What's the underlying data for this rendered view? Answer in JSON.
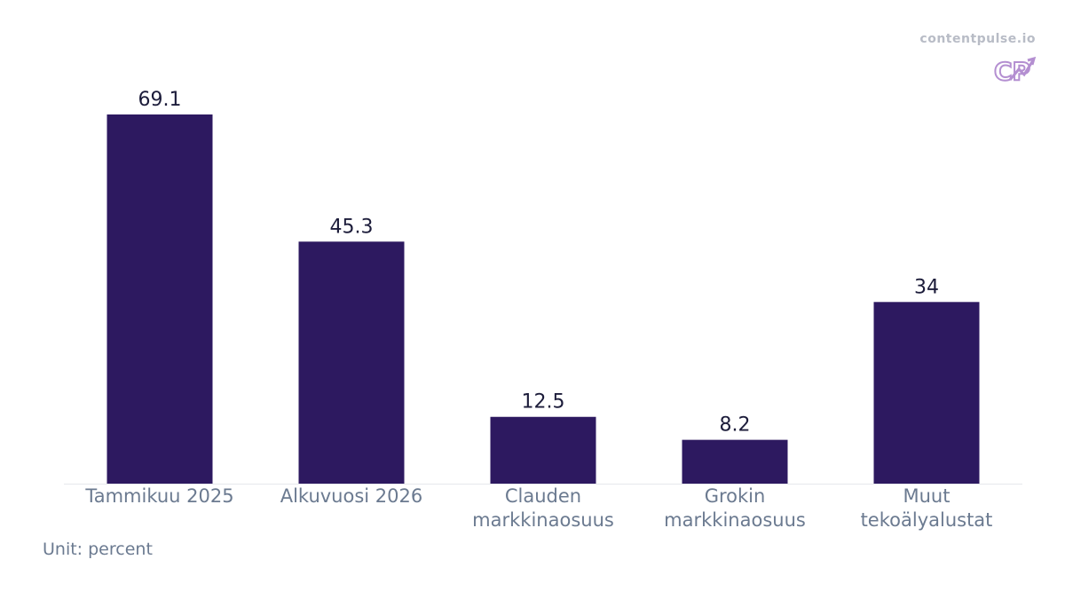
{
  "brand": {
    "site": "contentpulse.io",
    "logo_text": "CP",
    "logo_icon": "trend-arrow-logo-icon",
    "logo_color": "#b48fd1"
  },
  "note": {
    "unit": "Unit: percent"
  },
  "colors": {
    "bar": "#2d1960",
    "value_label": "#1c1c3a",
    "tick_label": "#6b7a90",
    "baseline": "#e6e8ec"
  },
  "chart_data": {
    "type": "bar",
    "categories": [
      [
        "Tammikuu 2025"
      ],
      [
        "Alkuvuosi 2026"
      ],
      [
        "Clauden",
        "markkinaosuus"
      ],
      [
        "Grokin",
        "markkinaosuus"
      ],
      [
        "Muut",
        "tekoälyalustat"
      ]
    ],
    "values": [
      69.1,
      45.3,
      12.5,
      8.2,
      34
    ],
    "value_labels": [
      "69.1",
      "45.3",
      "12.5",
      "8.2",
      "34"
    ],
    "title": "",
    "xlabel": "",
    "ylabel": "",
    "ylim": [
      0,
      72.5
    ],
    "grid": false,
    "legend": "none"
  }
}
